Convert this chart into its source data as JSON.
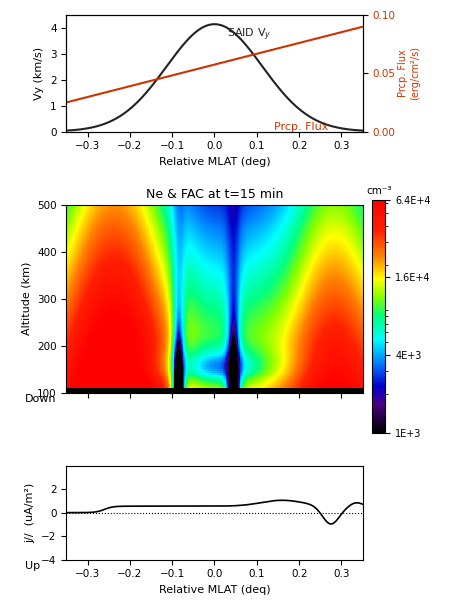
{
  "title_mid": "Ne & FAC at t=15 min",
  "xlabel_top": "Relative MLAT (deg)",
  "xlabel_bot": "Relative MLAT (deq)",
  "ylabel_top_left": "Vy (km/s)",
  "ylabel_top_right": "Prcp. Flux\n(erg/cm²/s)",
  "ylabel_mid": "Altitude (km)",
  "ylabel_bot": "j//  (uA/m²)",
  "mlat_range": [
    -0.35,
    0.35
  ],
  "vy_ylim": [
    0,
    4.5
  ],
  "prcp_ylim": [
    0.0,
    0.1
  ],
  "alt_ylim": [
    100,
    500
  ],
  "fac_ylim": [
    -4,
    4
  ],
  "colorbar_label": "cm⁻³",
  "colorbar_ticklabels": [
    "1E+3",
    "4E+3",
    "1.6E+4",
    "6.4E+4"
  ],
  "down_label": "Down",
  "up_label": "Up",
  "background_color": "#ffffff",
  "line_color_vy": "#222222",
  "line_color_prcp": "#cc3300",
  "text_said": "SAID V$_y$",
  "text_prcp": "Prcp. Flux"
}
